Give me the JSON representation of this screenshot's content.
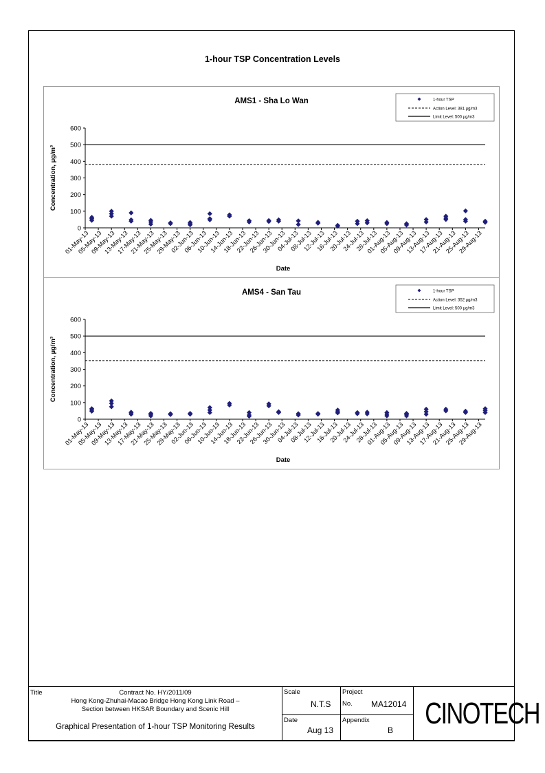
{
  "page_title": "1-hour TSP Concentration Levels",
  "chart_data": [
    {
      "type": "scatter",
      "title": "AMS1 - Sha Lo Wan",
      "xlabel": "Date",
      "ylabel": "Concentration, µg/m³",
      "ylim": [
        0,
        600
      ],
      "yticks": [
        0,
        100,
        200,
        300,
        400,
        500,
        600
      ],
      "xticks": [
        "01-May-13",
        "05-May-13",
        "09-May-13",
        "13-May-13",
        "17-May-13",
        "21-May-13",
        "25-May-13",
        "29-May-13",
        "02-Jun-13",
        "06-Jun-13",
        "10-Jun-13",
        "14-Jun-13",
        "18-Jun-13",
        "22-Jun-13",
        "26-Jun-13",
        "30-Jun-13",
        "04-Jul-13",
        "08-Jul-13",
        "12-Jul-13",
        "16-Jul-13",
        "20-Jul-13",
        "24-Jul-13",
        "28-Jul-13",
        "01-Aug-13",
        "05-Aug-13",
        "09-Aug-13",
        "13-Aug-13",
        "17-Aug-13",
        "21-Aug-13",
        "25-Aug-13",
        "29-Aug-13"
      ],
      "legend": {
        "position": "top-right",
        "entries": [
          "1-hour TSP",
          "Action Level: 381 µg/m3",
          "Limit Level: 500 µg/m3"
        ]
      },
      "action_level": 381,
      "limit_level": 500,
      "series": [
        {
          "name": "1-hour TSP",
          "marker": "diamond",
          "color": "#1F1F7A",
          "points": [
            [
              "03-May-13",
              45
            ],
            [
              "03-May-13",
              55
            ],
            [
              "03-May-13",
              63
            ],
            [
              "09-May-13",
              70
            ],
            [
              "09-May-13",
              85
            ],
            [
              "09-May-13",
              100
            ],
            [
              "15-May-13",
              40
            ],
            [
              "15-May-13",
              48
            ],
            [
              "15-May-13",
              90
            ],
            [
              "21-May-13",
              22
            ],
            [
              "21-May-13",
              35
            ],
            [
              "21-May-13",
              45
            ],
            [
              "27-May-13",
              25
            ],
            [
              "27-May-13",
              30
            ],
            [
              "02-Jun-13",
              18
            ],
            [
              "02-Jun-13",
              25
            ],
            [
              "02-Jun-13",
              32
            ],
            [
              "08-Jun-13",
              48
            ],
            [
              "08-Jun-13",
              55
            ],
            [
              "08-Jun-13",
              85
            ],
            [
              "14-Jun-13",
              70
            ],
            [
              "14-Jun-13",
              78
            ],
            [
              "20-Jun-13",
              35
            ],
            [
              "20-Jun-13",
              43
            ],
            [
              "26-Jun-13",
              38
            ],
            [
              "26-Jun-13",
              44
            ],
            [
              "29-Jun-13",
              40
            ],
            [
              "29-Jun-13",
              48
            ],
            [
              "05-Jul-13",
              20
            ],
            [
              "05-Jul-13",
              42
            ],
            [
              "11-Jul-13",
              28
            ],
            [
              "11-Jul-13",
              33
            ],
            [
              "17-Jul-13",
              10
            ],
            [
              "17-Jul-13",
              15
            ],
            [
              "23-Jul-13",
              25
            ],
            [
              "23-Jul-13",
              40
            ],
            [
              "26-Jul-13",
              30
            ],
            [
              "26-Jul-13",
              43
            ],
            [
              "01-Aug-13",
              25
            ],
            [
              "01-Aug-13",
              32
            ],
            [
              "07-Aug-13",
              17
            ],
            [
              "07-Aug-13",
              25
            ],
            [
              "13-Aug-13",
              35
            ],
            [
              "13-Aug-13",
              50
            ],
            [
              "19-Aug-13",
              50
            ],
            [
              "19-Aug-13",
              58
            ],
            [
              "19-Aug-13",
              70
            ],
            [
              "25-Aug-13",
              40
            ],
            [
              "25-Aug-13",
              50
            ],
            [
              "25-Aug-13",
              102
            ],
            [
              "31-Aug-13",
              33
            ],
            [
              "31-Aug-13",
              40
            ]
          ]
        }
      ]
    },
    {
      "type": "scatter",
      "title": "AMS4 - San Tau",
      "xlabel": "Date",
      "ylabel": "Concentration, µg/m³",
      "ylim": [
        0,
        600
      ],
      "yticks": [
        0,
        100,
        200,
        300,
        400,
        500,
        600
      ],
      "xticks": [
        "01-May-13",
        "05-May-13",
        "09-May-13",
        "13-May-13",
        "17-May-13",
        "21-May-13",
        "25-May-13",
        "29-May-13",
        "02-Jun-13",
        "06-Jun-13",
        "10-Jun-13",
        "14-Jun-13",
        "18-Jun-13",
        "22-Jun-13",
        "26-Jun-13",
        "30-Jun-13",
        "04-Jul-13",
        "08-Jul-13",
        "12-Jul-13",
        "16-Jul-13",
        "20-Jul-13",
        "24-Jul-13",
        "28-Jul-13",
        "01-Aug-13",
        "05-Aug-13",
        "09-Aug-13",
        "13-Aug-13",
        "17-Aug-13",
        "21-Aug-13",
        "25-Aug-13",
        "29-Aug-13"
      ],
      "legend": {
        "position": "top-right",
        "entries": [
          "1-hour TSP",
          "Action Level: 352 µg/m3",
          "Limit Level: 500 µg/m3"
        ]
      },
      "action_level": 352,
      "limit_level": 500,
      "series": [
        {
          "name": "1-hour TSP",
          "marker": "diamond",
          "color": "#1F1F7A",
          "points": [
            [
              "03-May-13",
              48
            ],
            [
              "03-May-13",
              55
            ],
            [
              "03-May-13",
              63
            ],
            [
              "09-May-13",
              75
            ],
            [
              "09-May-13",
              95
            ],
            [
              "09-May-13",
              110
            ],
            [
              "15-May-13",
              30
            ],
            [
              "15-May-13",
              38
            ],
            [
              "15-May-13",
              42
            ],
            [
              "21-May-13",
              20
            ],
            [
              "21-May-13",
              28
            ],
            [
              "21-May-13",
              35
            ],
            [
              "27-May-13",
              28
            ],
            [
              "27-May-13",
              33
            ],
            [
              "02-Jun-13",
              30
            ],
            [
              "02-Jun-13",
              35
            ],
            [
              "08-Jun-13",
              40
            ],
            [
              "08-Jun-13",
              55
            ],
            [
              "08-Jun-13",
              70
            ],
            [
              "14-Jun-13",
              85
            ],
            [
              "14-Jun-13",
              95
            ],
            [
              "20-Jun-13",
              18
            ],
            [
              "20-Jun-13",
              25
            ],
            [
              "20-Jun-13",
              40
            ],
            [
              "26-Jun-13",
              80
            ],
            [
              "26-Jun-13",
              92
            ],
            [
              "29-Jun-13",
              40
            ],
            [
              "29-Jun-13",
              45
            ],
            [
              "05-Jul-13",
              25
            ],
            [
              "05-Jul-13",
              33
            ],
            [
              "11-Jul-13",
              30
            ],
            [
              "11-Jul-13",
              34
            ],
            [
              "17-Jul-13",
              38
            ],
            [
              "17-Jul-13",
              45
            ],
            [
              "17-Jul-13",
              55
            ],
            [
              "23-Jul-13",
              33
            ],
            [
              "23-Jul-13",
              40
            ],
            [
              "26-Jul-13",
              32
            ],
            [
              "26-Jul-13",
              42
            ],
            [
              "01-Aug-13",
              20
            ],
            [
              "01-Aug-13",
              30
            ],
            [
              "01-Aug-13",
              40
            ],
            [
              "07-Aug-13",
              20
            ],
            [
              "07-Aug-13",
              28
            ],
            [
              "07-Aug-13",
              35
            ],
            [
              "13-Aug-13",
              30
            ],
            [
              "13-Aug-13",
              45
            ],
            [
              "13-Aug-13",
              60
            ],
            [
              "19-Aug-13",
              50
            ],
            [
              "19-Aug-13",
              60
            ],
            [
              "25-Aug-13",
              40
            ],
            [
              "25-Aug-13",
              48
            ],
            [
              "31-Aug-13",
              40
            ],
            [
              "31-Aug-13",
              52
            ],
            [
              "31-Aug-13",
              63
            ]
          ]
        }
      ]
    }
  ],
  "title_block": {
    "title_label": "Title",
    "contract": "Contract No. HY/2011/09",
    "project_line1": "Hong Kong-Zhuhai-Macao Bridge Hong Kong Link Road –",
    "project_line2": "Section between HKSAR Boundary and Scenic Hill",
    "description": "Graphical Presentation of 1-hour TSP Monitoring Results",
    "scale_label": "Scale",
    "scale_value": "N.T.S",
    "date_label": "Date",
    "date_value": "Aug 13",
    "project_label": "Project",
    "no_label": "No.",
    "project_no": "MA12014",
    "appendix_label": "Appendix",
    "appendix_value": "B",
    "logo_text": "CINOTECH"
  }
}
